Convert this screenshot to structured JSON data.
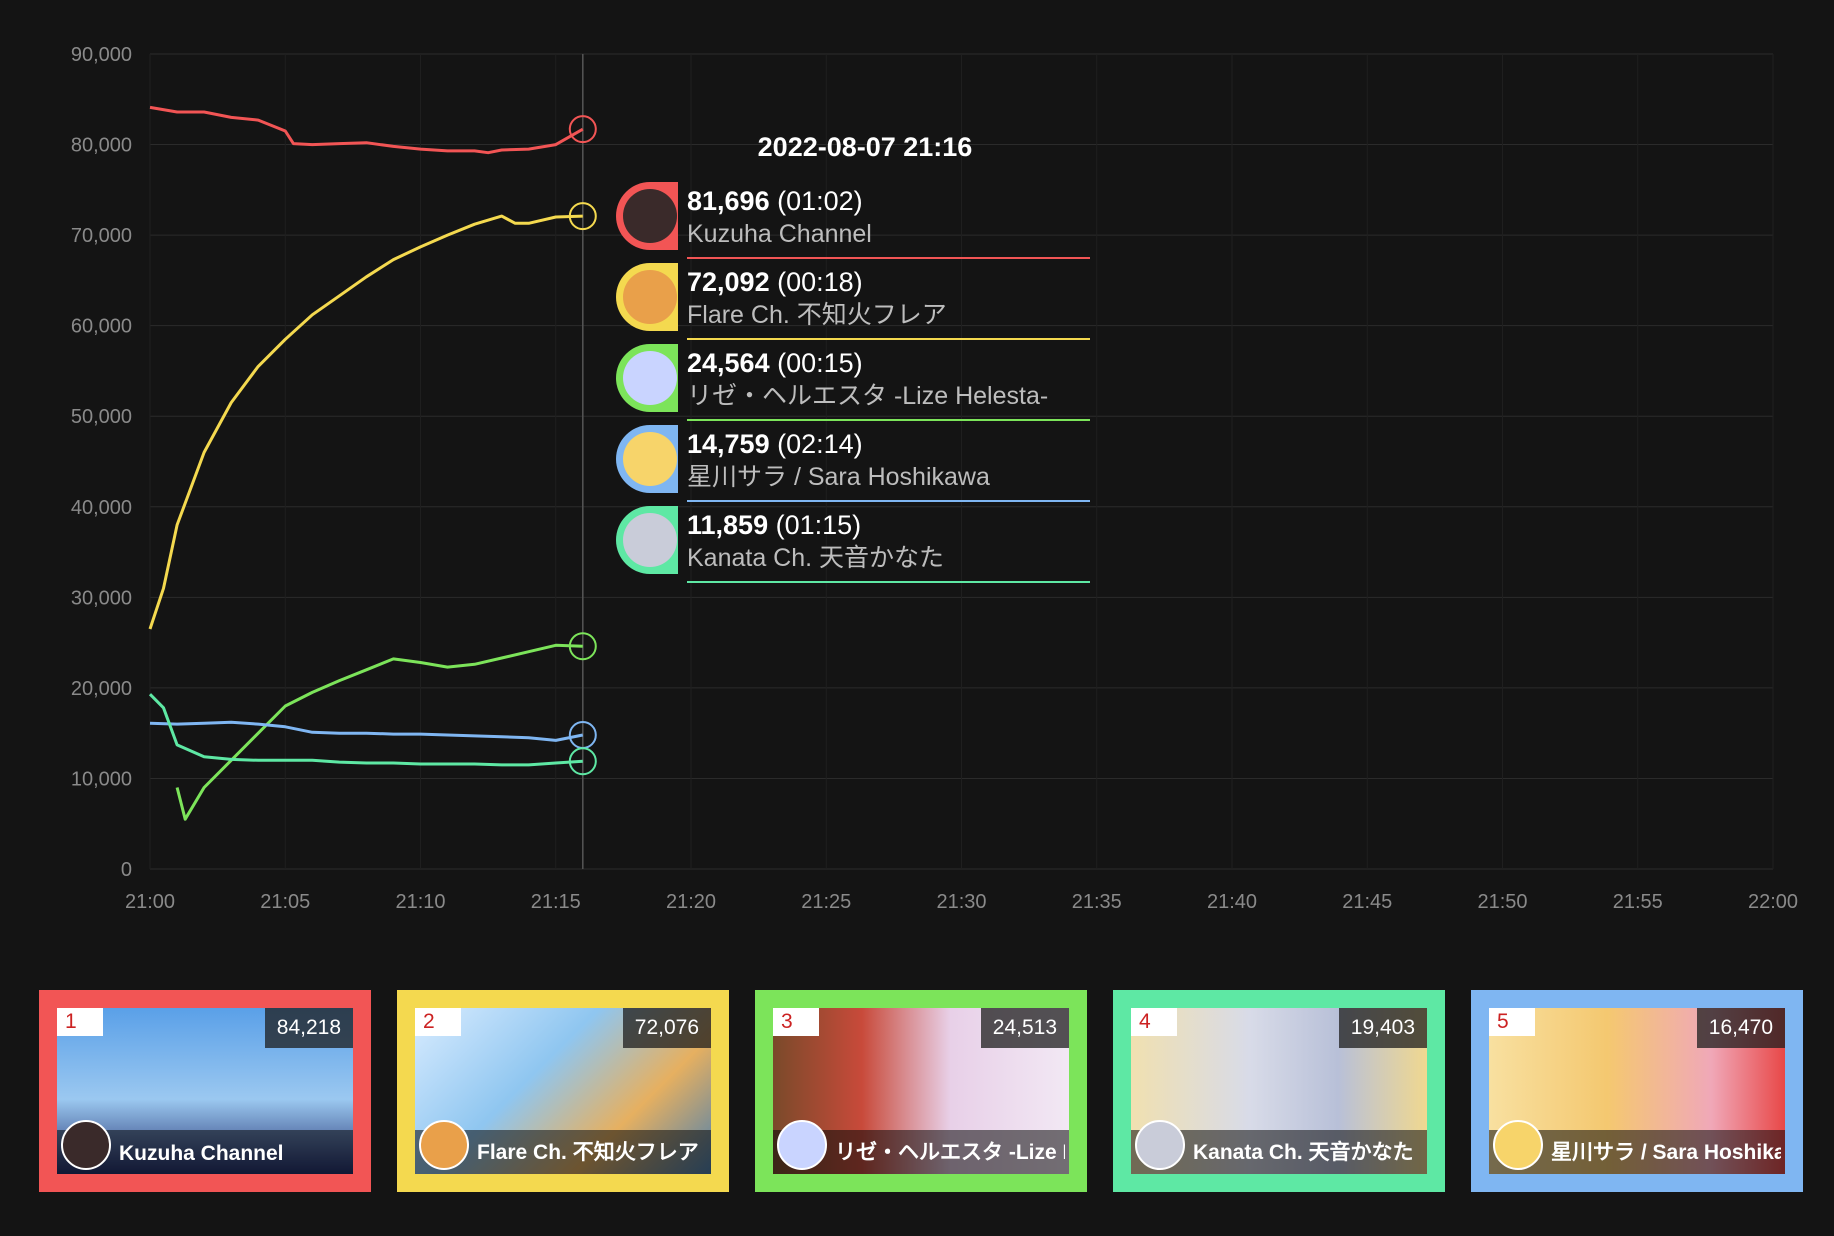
{
  "chart_data": {
    "type": "line",
    "y_ticks": [
      "90,000",
      "80,000",
      "70,000",
      "60,000",
      "50,000",
      "40,000",
      "30,000",
      "20,000",
      "10,000",
      "0"
    ],
    "y_tick_values": [
      90000,
      80000,
      70000,
      60000,
      50000,
      40000,
      30000,
      20000,
      10000,
      0
    ],
    "x_ticks": [
      "21:00",
      "21:05",
      "21:10",
      "21:15",
      "21:20",
      "21:25",
      "21:30",
      "21:35",
      "21:40",
      "21:45",
      "21:50",
      "21:55",
      "22:00"
    ],
    "x_tick_minutes": [
      0,
      5,
      10,
      15,
      20,
      25,
      30,
      35,
      40,
      45,
      50,
      55,
      60
    ],
    "ylim": [
      0,
      90000
    ],
    "xlim_minutes": [
      0,
      60
    ],
    "grid": true,
    "cursor_minute": 16,
    "series": [
      {
        "name": "Kuzuha Channel",
        "color": "#f25555",
        "points": [
          [
            0,
            84100
          ],
          [
            1,
            83600
          ],
          [
            2,
            83600
          ],
          [
            3,
            83000
          ],
          [
            4,
            82700
          ],
          [
            5,
            81500
          ],
          [
            5.3,
            80100
          ],
          [
            6,
            80000
          ],
          [
            7,
            80100
          ],
          [
            8,
            80200
          ],
          [
            9,
            79800
          ],
          [
            10,
            79500
          ],
          [
            11,
            79300
          ],
          [
            12,
            79300
          ],
          [
            12.5,
            79100
          ],
          [
            13,
            79400
          ],
          [
            14,
            79500
          ],
          [
            15,
            80000
          ],
          [
            16,
            81700
          ]
        ]
      },
      {
        "name": "Flare Ch. 不知火フレア",
        "color": "#f4d94f",
        "points": [
          [
            0,
            26500
          ],
          [
            0.5,
            31000
          ],
          [
            1,
            38000
          ],
          [
            2,
            46000
          ],
          [
            3,
            51500
          ],
          [
            4,
            55500
          ],
          [
            5,
            58500
          ],
          [
            6,
            61200
          ],
          [
            7,
            63300
          ],
          [
            8,
            65400
          ],
          [
            9,
            67300
          ],
          [
            10,
            68700
          ],
          [
            11,
            70000
          ],
          [
            12,
            71200
          ],
          [
            13,
            72100
          ],
          [
            13.5,
            71300
          ],
          [
            14,
            71300
          ],
          [
            15,
            72000
          ],
          [
            16,
            72100
          ]
        ]
      },
      {
        "name": "リゼ・ヘルエスタ -Lize Helesta-",
        "color": "#7ce45a",
        "points": [
          [
            1,
            9000
          ],
          [
            1.3,
            5500
          ],
          [
            2,
            9000
          ],
          [
            3,
            12000
          ],
          [
            4,
            15000
          ],
          [
            5,
            18000
          ],
          [
            6,
            19500
          ],
          [
            7,
            20800
          ],
          [
            8,
            22000
          ],
          [
            9,
            23200
          ],
          [
            10,
            22800
          ],
          [
            11,
            22300
          ],
          [
            12,
            22600
          ],
          [
            13,
            23300
          ],
          [
            14,
            24000
          ],
          [
            15,
            24700
          ],
          [
            16,
            24600
          ]
        ]
      },
      {
        "name": "星川サラ / Sara Hoshikawa",
        "color": "#7fb6f2",
        "points": [
          [
            0,
            16100
          ],
          [
            1,
            16000
          ],
          [
            2,
            16100
          ],
          [
            3,
            16200
          ],
          [
            4,
            16000
          ],
          [
            5,
            15700
          ],
          [
            6,
            15100
          ],
          [
            7,
            15000
          ],
          [
            8,
            15000
          ],
          [
            9,
            14900
          ],
          [
            10,
            14900
          ],
          [
            11,
            14800
          ],
          [
            12,
            14700
          ],
          [
            13,
            14600
          ],
          [
            14,
            14500
          ],
          [
            15,
            14200
          ],
          [
            16,
            14800
          ]
        ]
      },
      {
        "name": "Kanata Ch. 天音かなた",
        "color": "#5ee8a4",
        "points": [
          [
            0,
            19300
          ],
          [
            0.5,
            17800
          ],
          [
            1,
            13700
          ],
          [
            2,
            12400
          ],
          [
            3,
            12100
          ],
          [
            4,
            12000
          ],
          [
            5,
            12000
          ],
          [
            6,
            12000
          ],
          [
            7,
            11800
          ],
          [
            8,
            11700
          ],
          [
            9,
            11700
          ],
          [
            10,
            11600
          ],
          [
            11,
            11600
          ],
          [
            12,
            11600
          ],
          [
            13,
            11500
          ],
          [
            14,
            11500
          ],
          [
            15,
            11700
          ],
          [
            16,
            11900
          ]
        ]
      }
    ]
  },
  "tooltip": {
    "title": "2022-08-07 21:16",
    "rows": [
      {
        "value": "81,696",
        "duration": "(01:02)",
        "name": "Kuzuha Channel",
        "color": "#f25555",
        "face": "#3a2a2a"
      },
      {
        "value": "72,092",
        "duration": "(00:18)",
        "name": "Flare Ch. 不知火フレア",
        "color": "#f4d94f",
        "face": "#e9a04a"
      },
      {
        "value": "24,564",
        "duration": "(00:15)",
        "name": "リゼ・ヘルエスタ -Lize Helesta-",
        "color": "#7ce45a",
        "face": "#c9d4ff"
      },
      {
        "value": "14,759",
        "duration": "(02:14)",
        "name": "星川サラ / Sara Hoshikawa",
        "color": "#7fb6f2",
        "face": "#f7d46a"
      },
      {
        "value": "11,859",
        "duration": "(01:15)",
        "name": "Kanata Ch. 天音かなた",
        "color": "#5ee8a4",
        "face": "#c9ccd9"
      }
    ]
  },
  "cards": [
    {
      "rank": "1",
      "count": "84,218",
      "name": "Kuzuha Channel",
      "color": "#f25555",
      "thumb_bg": "linear-gradient(180deg,#5aa0e8 0%,#9bc8f0 55%,#1d2a6a 100%)",
      "av": "#3a2a2a"
    },
    {
      "rank": "2",
      "count": "72,076",
      "name": "Flare Ch. 不知火フレア",
      "color": "#f4d94f",
      "thumb_bg": "linear-gradient(135deg,#d9ecff 0%,#8fc6f0 40%,#e6b060 70%,#4a7fb0 100%)",
      "av": "#e9a04a"
    },
    {
      "rank": "3",
      "count": "24,513",
      "name": "リゼ・ヘルエスタ -Lize Helesta-",
      "color": "#7ce45a",
      "thumb_bg": "linear-gradient(90deg,#7a4a2a 0%,#c84a3a 30%,#e8d0e8 60%,#f2e8f4 100%)",
      "av": "#c9d4ff"
    },
    {
      "rank": "4",
      "count": "19,403",
      "name": "Kanata Ch. 天音かなた",
      "color": "#5ee8a4",
      "thumb_bg": "linear-gradient(90deg,#f0e0b0 0%,#d8dbe8 40%,#b8c0d8 70%,#f0d890 100%)",
      "av": "#c9ccd9"
    },
    {
      "rank": "5",
      "count": "16,470",
      "name": "星川サラ / Sara Hoshikawa",
      "color": "#7fb6f2",
      "thumb_bg": "linear-gradient(90deg,#f8e0a0 0%,#f4c870 40%,#f0a8b8 75%,#e84848 100%)",
      "av": "#f7d46a"
    }
  ]
}
